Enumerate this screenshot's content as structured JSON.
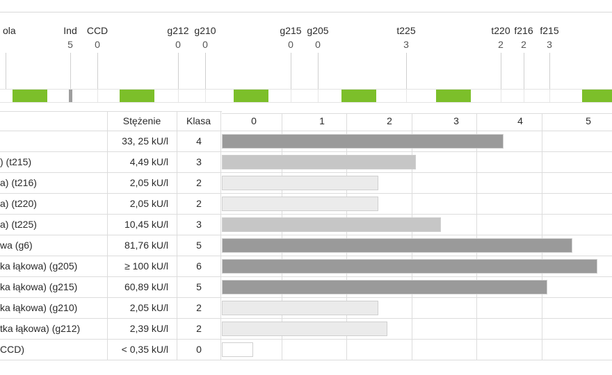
{
  "chart_data": {
    "type": "bar",
    "orientation": "horizontal",
    "top_markers": [
      {
        "label": "ola",
        "value": ""
      },
      {
        "label": "Ind",
        "value": "5"
      },
      {
        "label": "CCD",
        "value": "0"
      },
      {
        "label": "g212",
        "value": "0"
      },
      {
        "label": "g210",
        "value": "0"
      },
      {
        "label": "g215",
        "value": "0"
      },
      {
        "label": "g205",
        "value": "0"
      },
      {
        "label": "t225",
        "value": "3"
      },
      {
        "label": "t220",
        "value": "2"
      },
      {
        "label": "f216",
        "value": "2"
      },
      {
        "label": "f215",
        "value": "3"
      }
    ],
    "headers": {
      "concentration": "Stężenie",
      "class": "Klasa"
    },
    "class_axis": {
      "ticks": [
        "0",
        "1",
        "2",
        "3",
        "4",
        "5"
      ],
      "xlim": [
        0,
        6
      ]
    },
    "rows": [
      {
        "name": "",
        "concentration": "33, 25 kU/l",
        "class": "4",
        "value": 4.5
      },
      {
        "name": ") (t215)",
        "concentration": "4,49 kU/l",
        "class": "3",
        "value": 3.1
      },
      {
        "name": "a) (t216)",
        "concentration": "2,05 kU/l",
        "class": "2",
        "value": 2.5
      },
      {
        "name": "a) (t220)",
        "concentration": "2,05 kU/l",
        "class": "2",
        "value": 2.5
      },
      {
        "name": "a) (t225)",
        "concentration": "10,45 kU/l",
        "class": "3",
        "value": 3.5
      },
      {
        "name": "wa (g6)",
        "concentration": "81,76 kU/l",
        "class": "5",
        "value": 5.6
      },
      {
        "name": "ka łąkowa) (g205)",
        "concentration": "≥ 100 kU/l",
        "class": "6",
        "value": 6.0
      },
      {
        "name": "ka łąkowa) (g215)",
        "concentration": "60,89 kU/l",
        "class": "5",
        "value": 5.2
      },
      {
        "name": "ka łąkowa) (g210)",
        "concentration": "2,05 kU/l",
        "class": "2",
        "value": 2.5
      },
      {
        "name": "tka łąkowa) (g212)",
        "concentration": "2,39 kU/l",
        "class": "2",
        "value": 2.65
      },
      {
        "name": "CCD)",
        "concentration": "< 0,35 kU/l",
        "class": "0",
        "value": 0.5
      }
    ],
    "colors": {
      "class_0": "#ffffff",
      "class_2": "#ebebeb",
      "class_3": "#c6c6c6",
      "class_high": "#9a9a9a",
      "green": "#7cbf2a"
    }
  }
}
